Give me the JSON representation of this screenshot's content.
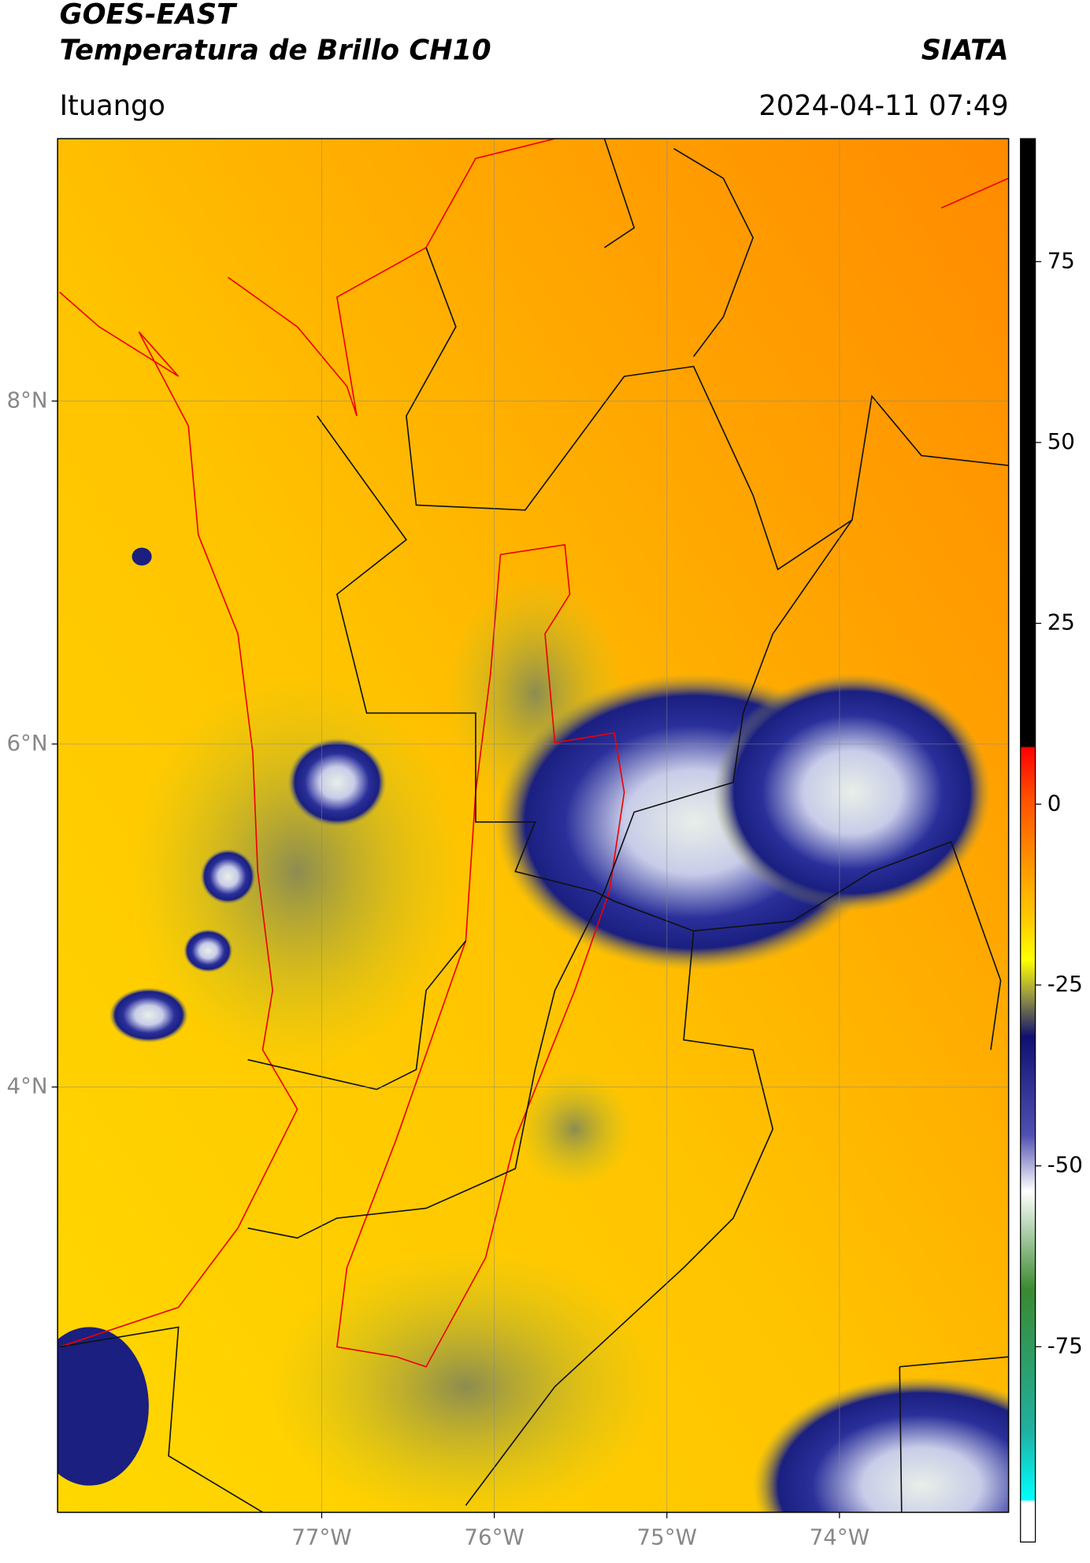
{
  "header": {
    "title": "GOES-EAST",
    "subtitle": "Temperatura de Brillo CH10",
    "source": "SIATA",
    "place": "Ituango",
    "datetime": "2024-04-11 07:49"
  },
  "map": {
    "xlim": [
      -78.53,
      -73.02
    ],
    "ylim": [
      1.52,
      9.53
    ],
    "xticks": [
      {
        "value": -77,
        "label": "77°W"
      },
      {
        "value": -76,
        "label": "76°W"
      },
      {
        "value": -75,
        "label": "75°W"
      },
      {
        "value": -74,
        "label": "74°W"
      }
    ],
    "yticks": [
      {
        "value": 8,
        "label": "8°N"
      },
      {
        "value": 6,
        "label": "6°N"
      },
      {
        "value": 4,
        "label": "4°N"
      }
    ],
    "grid": true
  },
  "colorbar": {
    "clim": [
      -102,
      92
    ],
    "ticks": [
      75,
      50,
      25,
      0,
      -25,
      -50,
      -75
    ]
  }
}
